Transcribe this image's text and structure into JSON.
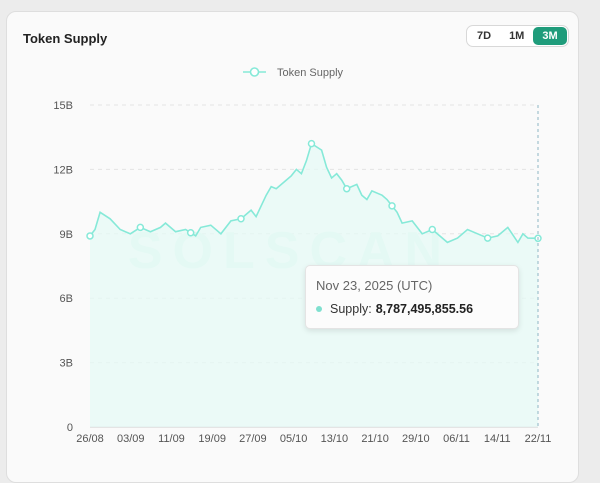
{
  "card": {
    "title": "Token Supply",
    "ranges": [
      {
        "label": "7D",
        "active": false
      },
      {
        "label": "1M",
        "active": false
      },
      {
        "label": "3M",
        "active": true
      }
    ]
  },
  "watermark": "SOLSCAN",
  "colors": {
    "line": "#86e9d8",
    "fill": "#e6f9f5",
    "accent": "#1f9c7b",
    "crosshair": "#8fb7c4"
  },
  "tooltip": {
    "date": "Nov 23, 2025 (UTC)",
    "series_label": "Supply:",
    "value": "8,787,495,855.56"
  },
  "chart_data": {
    "type": "area",
    "title": "Token Supply",
    "legend": [
      "Token Supply"
    ],
    "legend_position": "top-center",
    "y_ticks": [
      "0",
      "3B",
      "6B",
      "9B",
      "12B",
      "15B"
    ],
    "x_ticks": [
      "26/08",
      "03/09",
      "11/09",
      "19/09",
      "27/09",
      "05/10",
      "13/10",
      "21/10",
      "29/10",
      "06/11",
      "14/11",
      "22/11"
    ],
    "ylim": [
      0,
      15
    ],
    "y_unit": "B",
    "grid": true,
    "xlim": [
      0,
      89
    ],
    "x_days": [
      0,
      1,
      2,
      4,
      6,
      8,
      10,
      12,
      14,
      15,
      17,
      19,
      21,
      22,
      24,
      26,
      28,
      30,
      31,
      32,
      33,
      35,
      36,
      37,
      39,
      40,
      41,
      42,
      43,
      44,
      46,
      47,
      48,
      49,
      50,
      51,
      53,
      54,
      55,
      56,
      58,
      59,
      61,
      62,
      64,
      66,
      68,
      70,
      71,
      73,
      75,
      77,
      79,
      81,
      83,
      85,
      86,
      87,
      89
    ],
    "values": [
      8.9,
      9.2,
      10.0,
      9.7,
      9.2,
      9.0,
      9.3,
      9.1,
      9.3,
      9.5,
      9.1,
      9.2,
      8.9,
      9.3,
      9.4,
      9.0,
      9.6,
      9.7,
      9.9,
      10.1,
      9.8,
      10.8,
      11.2,
      11.1,
      11.5,
      11.7,
      12.0,
      11.8,
      12.4,
      13.2,
      12.9,
      12.1,
      11.6,
      11.8,
      11.5,
      11.1,
      11.3,
      10.8,
      10.6,
      11.0,
      10.8,
      10.6,
      10.0,
      9.5,
      9.6,
      9.0,
      9.2,
      8.8,
      8.6,
      8.8,
      9.2,
      9.0,
      8.8,
      8.9,
      9.3,
      8.6,
      9.0,
      8.8,
      8.79
    ],
    "markers_at_days": [
      0,
      10,
      20,
      30,
      44,
      51,
      60,
      68,
      79,
      89
    ]
  }
}
